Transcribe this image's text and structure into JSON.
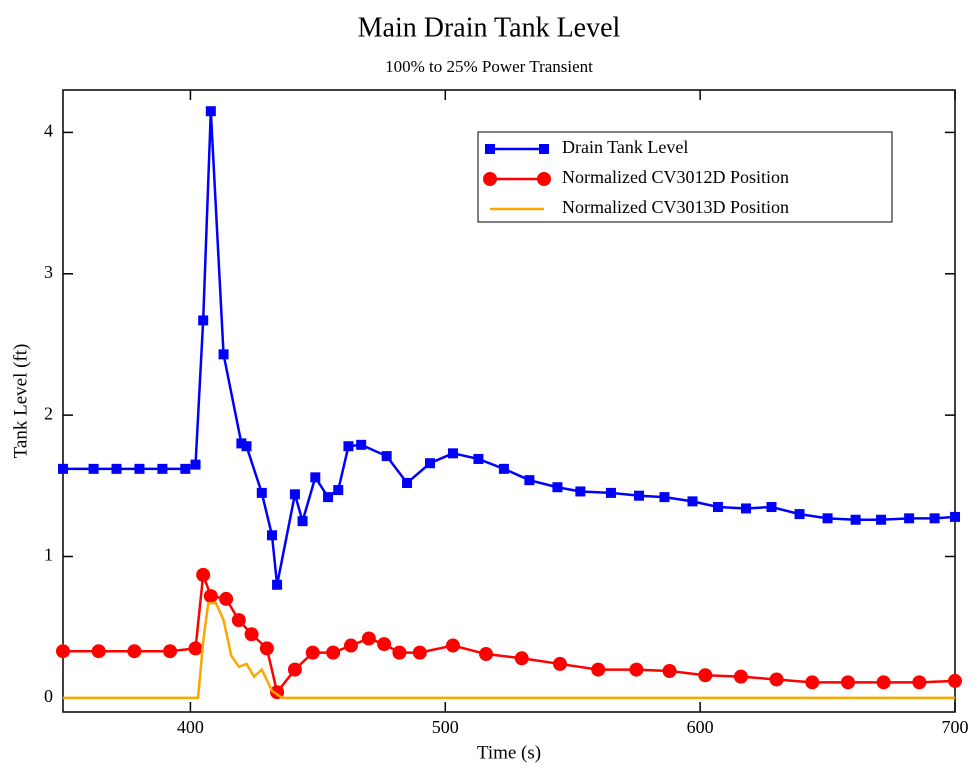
{
  "chart_data": {
    "type": "line",
    "title": "Main Drain Tank Level",
    "subtitle": "100% to 25% Power Transient",
    "xlabel": "Time (s)",
    "ylabel": "Tank Level (ft)",
    "xlim": [
      350,
      700
    ],
    "ylim": [
      -0.1,
      4.3
    ],
    "xticks": [
      400,
      500,
      600,
      700
    ],
    "yticks": [
      0,
      1,
      2,
      3,
      4
    ],
    "legend": "upper right",
    "series": [
      {
        "name": "Drain Tank Level",
        "color": "#0000ff",
        "marker": "square",
        "x": [
          350,
          362,
          371,
          380,
          389,
          398,
          402,
          405,
          408,
          413,
          420,
          422,
          428,
          432,
          434,
          441,
          444,
          449,
          454,
          458,
          462,
          467,
          477,
          485,
          494,
          503,
          513,
          523,
          533,
          544,
          553,
          565,
          576,
          586,
          597,
          607,
          618,
          628,
          639,
          650,
          661,
          671,
          682,
          692,
          700
        ],
        "values": [
          1.62,
          1.62,
          1.62,
          1.62,
          1.62,
          1.62,
          1.65,
          2.67,
          4.15,
          2.43,
          1.8,
          1.78,
          1.45,
          1.15,
          0.8,
          1.44,
          1.25,
          1.56,
          1.42,
          1.47,
          1.78,
          1.79,
          1.71,
          1.52,
          1.66,
          1.73,
          1.69,
          1.62,
          1.54,
          1.49,
          1.46,
          1.45,
          1.43,
          1.42,
          1.39,
          1.35,
          1.34,
          1.35,
          1.3,
          1.27,
          1.26,
          1.26,
          1.27,
          1.27,
          1.28
        ]
      },
      {
        "name": "Normalized CV3012D Position",
        "color": "#ff0000",
        "marker": "circle",
        "x": [
          350,
          364,
          378,
          392,
          402,
          405,
          408,
          414,
          419,
          424,
          430,
          434,
          441,
          448,
          456,
          463,
          470,
          476,
          482,
          490,
          503,
          516,
          530,
          545,
          560,
          575,
          588,
          602,
          616,
          630,
          644,
          658,
          672,
          686,
          700
        ],
        "values": [
          0.33,
          0.33,
          0.33,
          0.33,
          0.35,
          0.87,
          0.72,
          0.7,
          0.55,
          0.45,
          0.35,
          0.04,
          0.2,
          0.32,
          0.32,
          0.37,
          0.42,
          0.38,
          0.32,
          0.32,
          0.37,
          0.31,
          0.28,
          0.24,
          0.2,
          0.2,
          0.19,
          0.16,
          0.15,
          0.13,
          0.11,
          0.11,
          0.11,
          0.11,
          0.12
        ]
      },
      {
        "name": "Normalized CV3013D Position",
        "color": "#ffa500",
        "x": [
          350,
          403,
          405,
          407,
          410,
          413,
          416,
          419,
          422,
          425,
          428,
          432,
          436,
          700
        ],
        "values": [
          0,
          0,
          0.4,
          0.67,
          0.67,
          0.55,
          0.3,
          0.22,
          0.24,
          0.15,
          0.2,
          0.05,
          0,
          0
        ]
      }
    ]
  }
}
